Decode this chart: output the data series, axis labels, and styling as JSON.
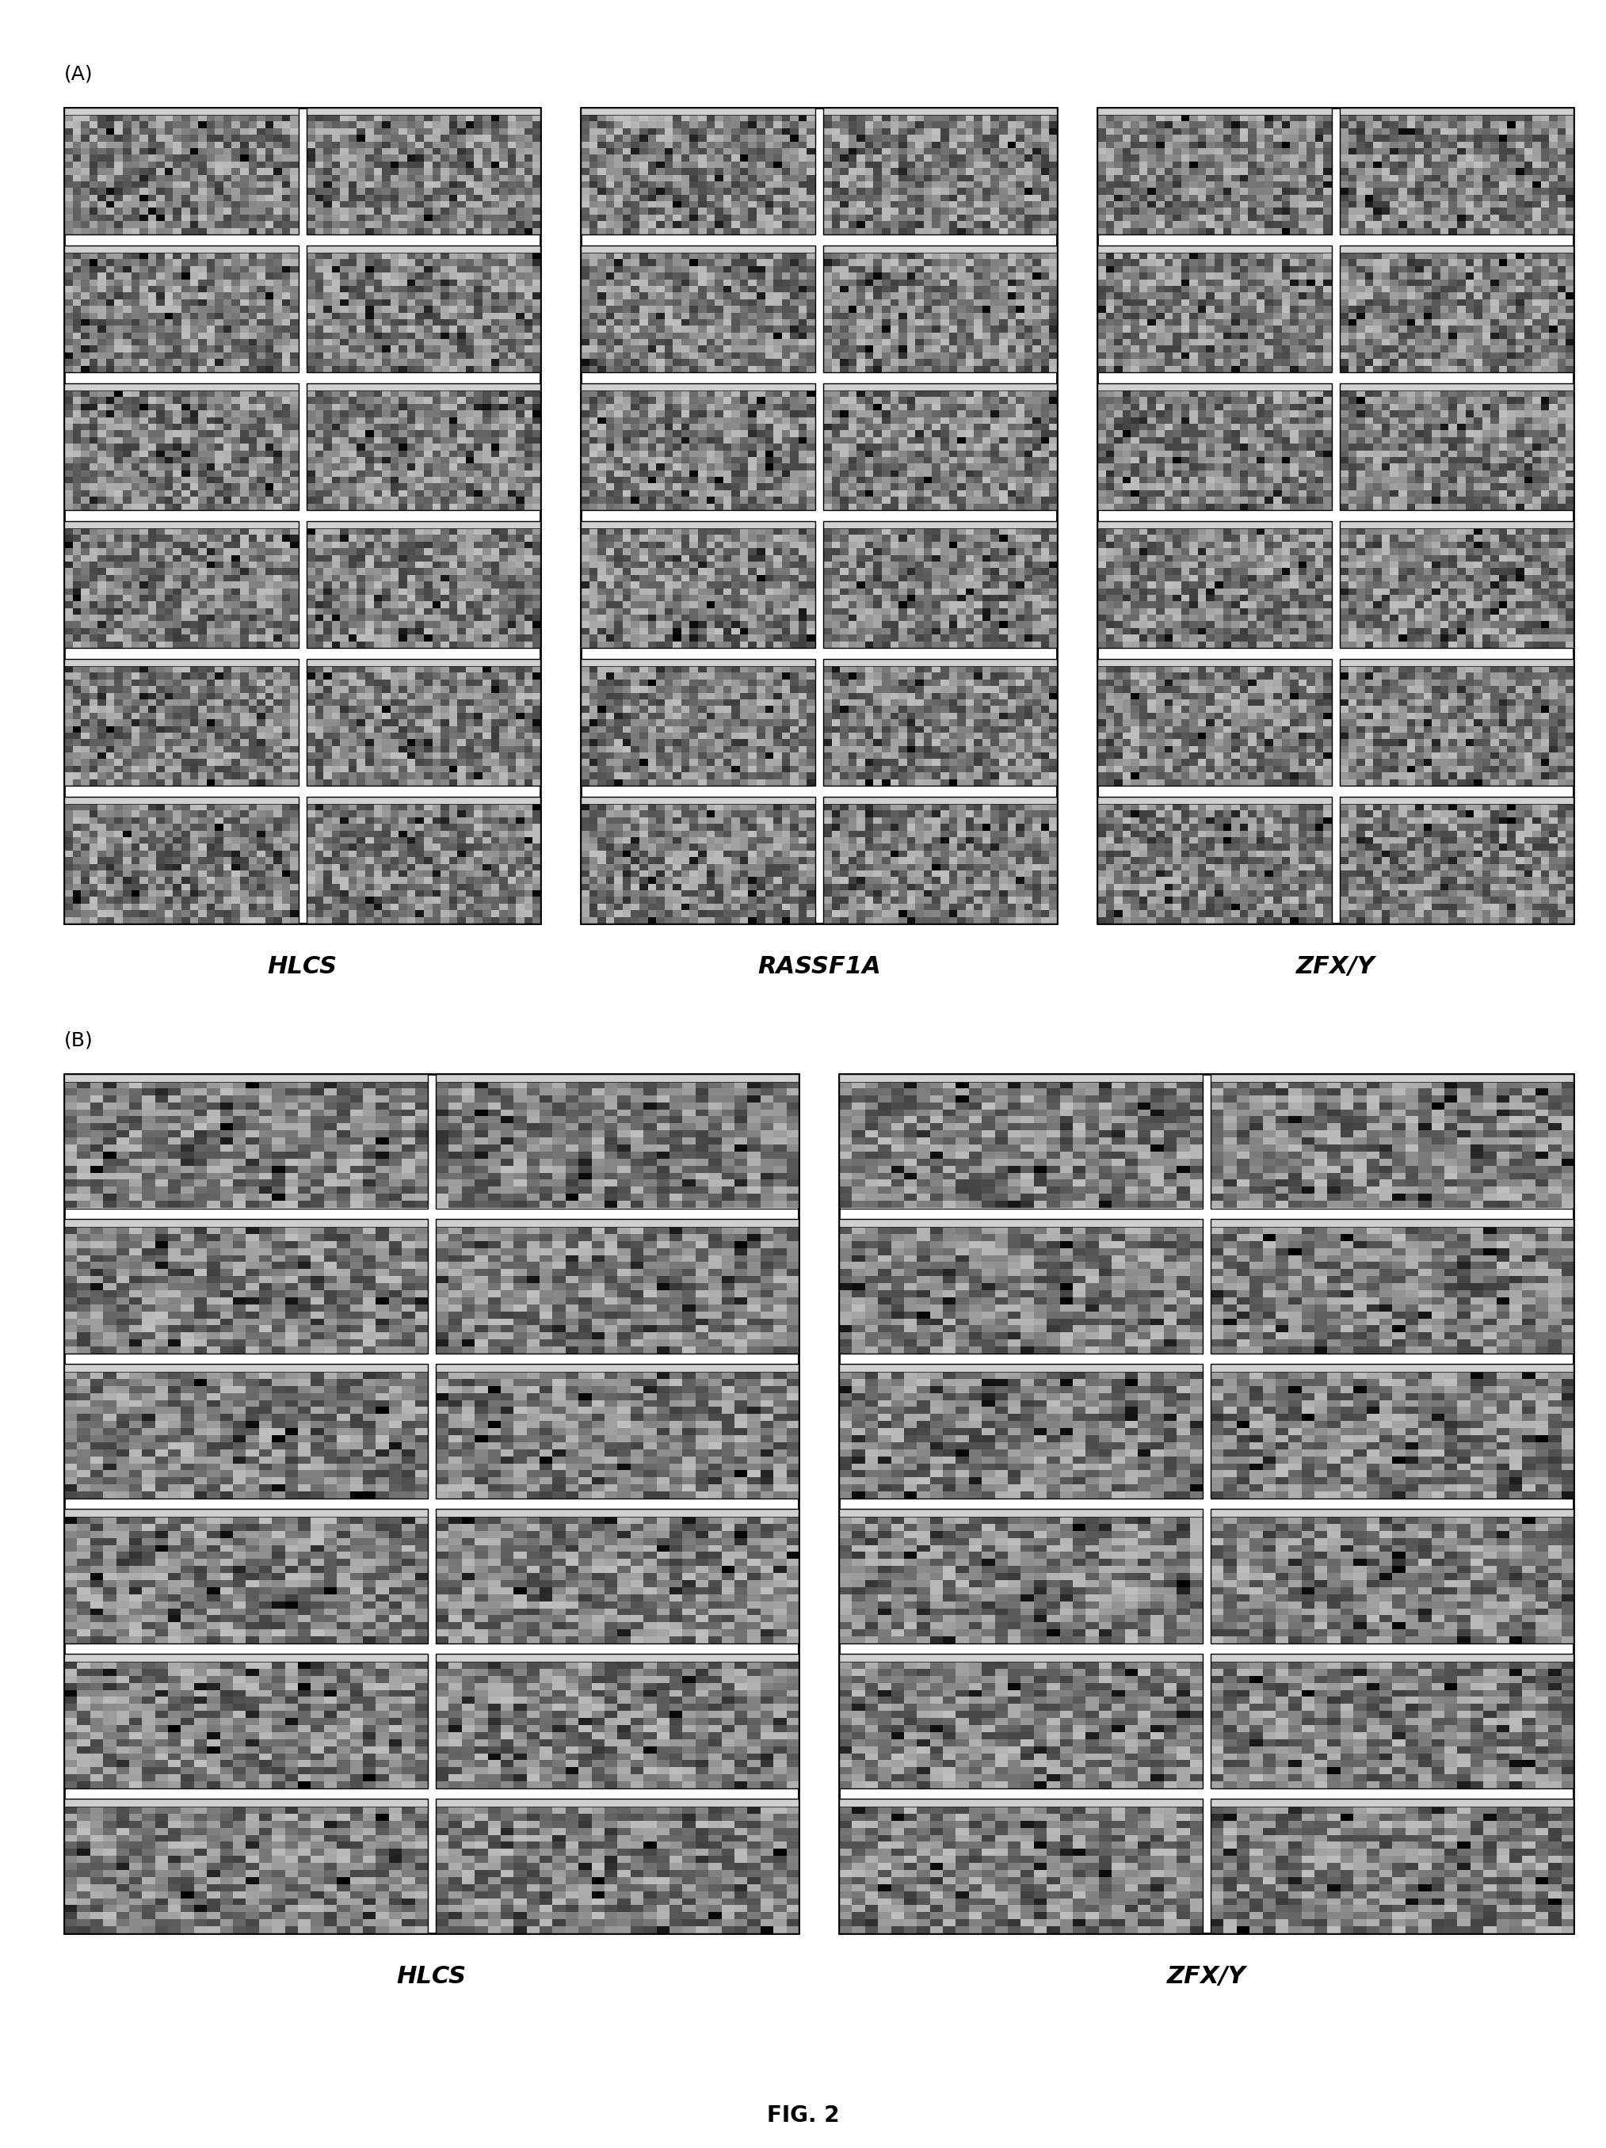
{
  "fig_width": 20.27,
  "fig_height": 27.12,
  "background_color": "#ffffff",
  "section_A_label": "(A)",
  "section_B_label": "(B)",
  "fig_label": "FIG. 2",
  "panel_A": {
    "groups": [
      {
        "label": "HLCS",
        "cols": 2,
        "rows": 6
      },
      {
        "label": "RASSF1A",
        "cols": 2,
        "rows": 6
      },
      {
        "label": "ZFX/Y",
        "cols": 2,
        "rows": 6
      }
    ]
  },
  "panel_B": {
    "groups": [
      {
        "label": "HLCS",
        "cols": 2,
        "rows": 6
      },
      {
        "label": "ZFX/Y",
        "cols": 2,
        "rows": 6
      }
    ]
  },
  "noise_seed_A": 42,
  "noise_seed_B": 99,
  "cell_header_color": "#d0d0d0",
  "cell_body_color_light": "#c8c8c8",
  "cell_body_color_dark": "#909090",
  "border_color": "#000000",
  "text_color": "#000000",
  "label_fontsize": 22,
  "section_fontsize": 18,
  "header_fontsize": 5,
  "fig_label_fontsize": 20
}
